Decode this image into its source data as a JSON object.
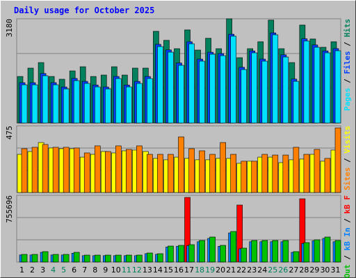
{
  "title": "Daily usage for October 2025",
  "legend_separator": " / ",
  "chart_data": [
    {
      "type": "bar",
      "categories": [
        "1",
        "2",
        "3",
        "4",
        "5",
        "6",
        "7",
        "8",
        "9",
        "10",
        "11",
        "12",
        "13",
        "14",
        "15",
        "16",
        "17",
        "18",
        "19",
        "20",
        "21",
        "22",
        "23",
        "24",
        "25",
        "26",
        "27",
        "28",
        "29",
        "30",
        "31"
      ],
      "category_colors": [
        "#000000",
        "#000000",
        "#000000",
        "#00805c",
        "#00805c",
        "#000000",
        "#000000",
        "#000000",
        "#000000",
        "#000000",
        "#00805c",
        "#00805c",
        "#000000",
        "#000000",
        "#000000",
        "#000000",
        "#000000",
        "#00805c",
        "#00805c",
        "#000000",
        "#000000",
        "#000000",
        "#000000",
        "#000000",
        "#00805c",
        "#00805c",
        "#000000",
        "#000000",
        "#000000",
        "#000000",
        "#000000"
      ],
      "ylim": [
        0,
        3180
      ],
      "series": [
        {
          "name": "Hits",
          "color": "#00805c",
          "values": [
            1420,
            1675,
            1844,
            1420,
            1336,
            1590,
            1717,
            1420,
            1463,
            1717,
            1463,
            1675,
            1675,
            2798,
            2523,
            2268,
            2841,
            2226,
            2586,
            2268,
            3180,
            1993,
            2268,
            2480,
            3140,
            2268,
            1844,
            2989,
            2565,
            2311,
            2480
          ]
        },
        {
          "name": "Files",
          "color": "#0040ff",
          "values": [
            1230,
            1230,
            1510,
            1230,
            1100,
            1360,
            1270,
            1160,
            1100,
            1420,
            1160,
            1270,
            1420,
            2400,
            2230,
            1830,
            2480,
            1950,
            2160,
            2120,
            2710,
            1700,
            2200,
            1950,
            2750,
            2080,
            1340,
            2570,
            2380,
            2200,
            2270
          ]
        },
        {
          "name": "Pages",
          "color": "#00e0ff",
          "values": [
            1166,
            1166,
            1442,
            1166,
            1039,
            1293,
            1208,
            1102,
            1039,
            1357,
            1102,
            1208,
            1357,
            2332,
            2162,
            1760,
            2417,
            1887,
            2099,
            2056,
            2650,
            1632,
            2141,
            1887,
            2692,
            2014,
            1272,
            2502,
            2311,
            2141,
            2205
          ]
        }
      ]
    },
    {
      "type": "bar",
      "ylim": [
        0,
        475
      ],
      "series": [
        {
          "name": "Visits",
          "color": "#ffff00",
          "values": [
            272,
            292,
            356,
            317,
            312,
            312,
            252,
            272,
            292,
            282,
            297,
            302,
            292,
            243,
            233,
            252,
            243,
            233,
            233,
            243,
            243,
            208,
            223,
            252,
            252,
            213,
            233,
            238,
            272,
            223,
            302
          ]
        },
        {
          "name": "Sites",
          "color": "#ff8000",
          "values": [
            312,
            322,
            342,
            322,
            322,
            317,
            282,
            332,
            292,
            332,
            307,
            332,
            272,
            272,
            272,
            396,
            312,
            297,
            272,
            356,
            272,
            223,
            223,
            272,
            267,
            267,
            322,
            272,
            307,
            243,
            460
          ]
        }
      ]
    },
    {
      "type": "bar",
      "ylim": [
        0,
        755696
      ],
      "series": [
        {
          "name": "kB F",
          "color": "#ff0000",
          "values": [
            0,
            0,
            0,
            0,
            0,
            0,
            0,
            0,
            0,
            0,
            0,
            0,
            0,
            0,
            0,
            0,
            732096,
            0,
            0,
            0,
            0,
            645504,
            0,
            0,
            0,
            0,
            0,
            716352,
            0,
            0,
            0
          ]
        },
        {
          "name": "kB In",
          "color": "#0080ff",
          "values": [
            80000,
            80000,
            110000,
            80000,
            80000,
            100000,
            72000,
            72000,
            72000,
            72000,
            72000,
            72000,
            95000,
            88000,
            170000,
            178000,
            185000,
            230000,
            268000,
            178000,
            330000,
            150000,
            230000,
            230000,
            230000,
            230000,
            110000,
            210000,
            240000,
            268000,
            230000
          ]
        },
        {
          "name": "kB Out",
          "color": "#00c000",
          "values": [
            86592,
            86592,
            118080,
            86592,
            86592,
            110208,
            78720,
            78720,
            78720,
            78720,
            78720,
            78720,
            102336,
            94464,
            181056,
            188928,
            196800,
            244032,
            283392,
            188928,
            346368,
            157440,
            244032,
            244032,
            244032,
            244032,
            118080,
            220416,
            251904,
            283392,
            244032
          ]
        }
      ]
    }
  ]
}
